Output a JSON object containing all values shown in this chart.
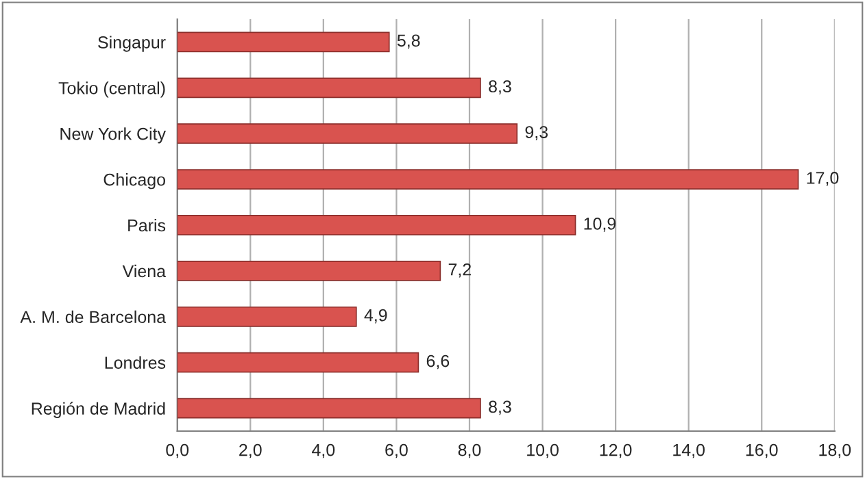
{
  "chart_data": {
    "type": "bar",
    "orientation": "horizontal",
    "categories": [
      "Singapur",
      "Tokio (central)",
      "New York City",
      "Chicago",
      "Paris",
      "Viena",
      "A. M. de Barcelona",
      "Londres",
      "Región de Madrid"
    ],
    "values": [
      5.8,
      8.3,
      9.3,
      17.0,
      10.9,
      7.2,
      4.9,
      6.6,
      8.3
    ],
    "value_labels": [
      "5,8",
      "8,3",
      "9,3",
      "17,0",
      "10,9",
      "7,2",
      "4,9",
      "6,6",
      "8,3"
    ],
    "color": "#d9534f",
    "xlim": [
      0,
      18
    ],
    "xticks": [
      {
        "value": 0,
        "label": "0,0"
      },
      {
        "value": 2,
        "label": "2,0"
      },
      {
        "value": 4,
        "label": "4,0"
      },
      {
        "value": 6,
        "label": "6,0"
      },
      {
        "value": 8,
        "label": "8,0"
      },
      {
        "value": 10,
        "label": "10,0"
      },
      {
        "value": 12,
        "label": "12,0"
      },
      {
        "value": 14,
        "label": "14,0"
      },
      {
        "value": 16,
        "label": "16,0"
      },
      {
        "value": 18,
        "label": "18,0"
      }
    ],
    "grid": "x",
    "legend": false
  }
}
